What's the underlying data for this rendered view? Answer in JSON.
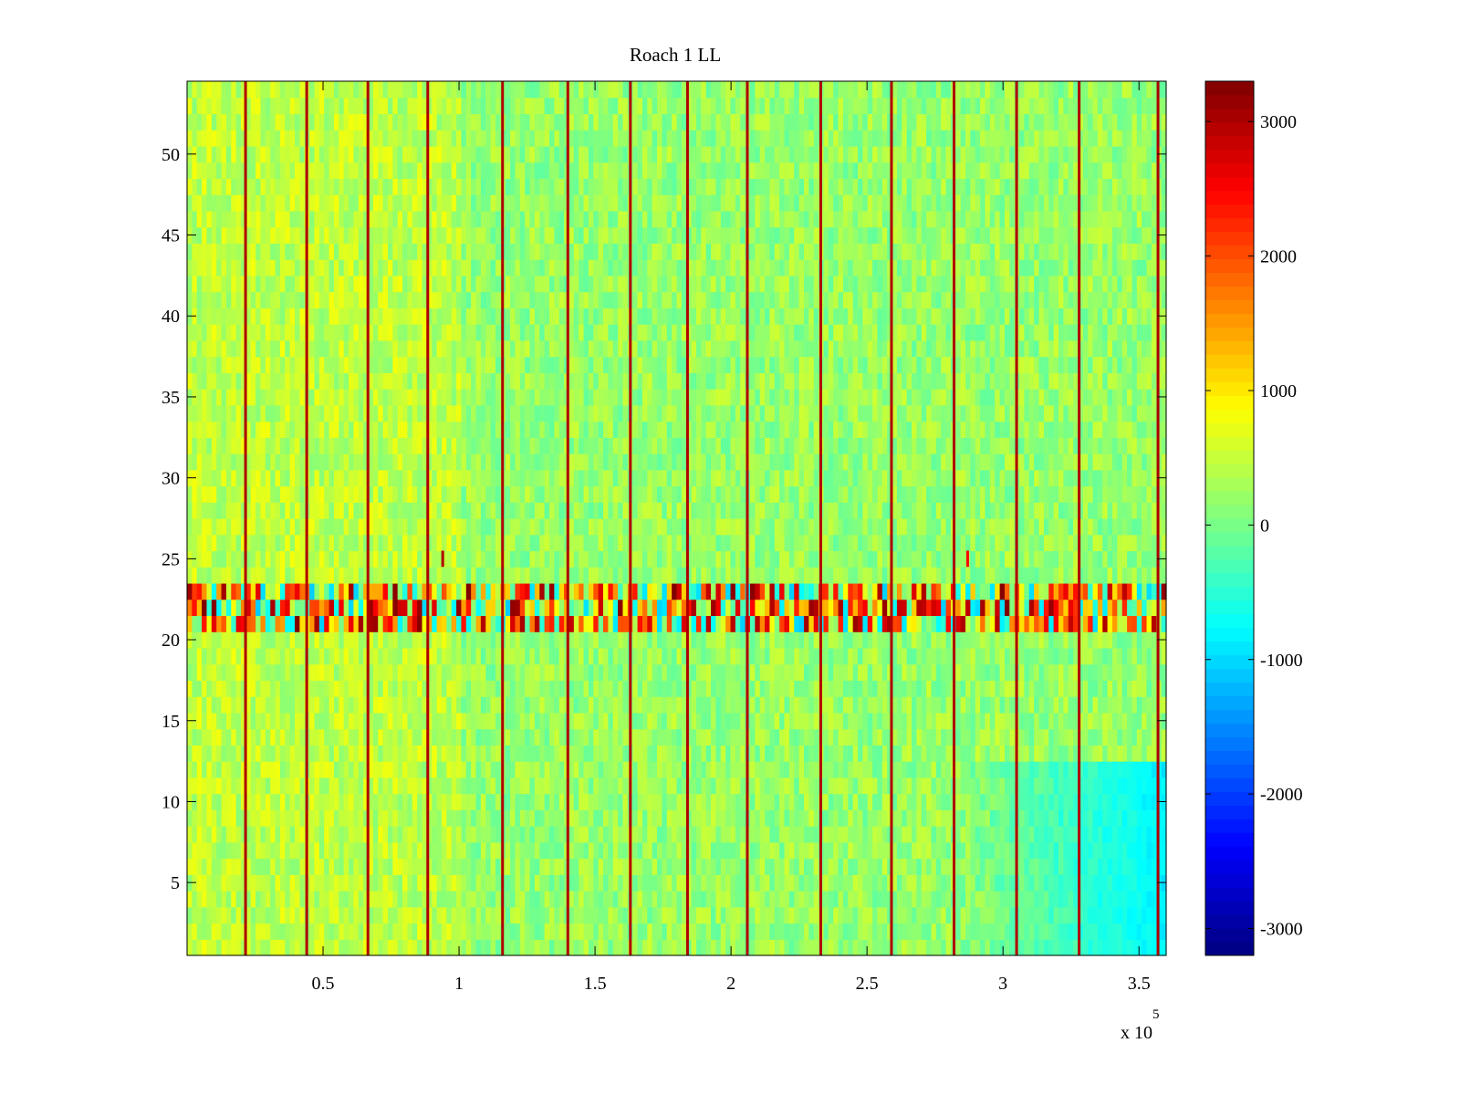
{
  "chart_data": {
    "type": "heatmap",
    "title": "Roach 1 LL",
    "xlabel": "",
    "ylabel": "",
    "x_exponent_label": "x 10",
    "x_exponent_power": "5",
    "xlim": [
      0.5,
      360000
    ],
    "ylim": [
      0.5,
      54.5
    ],
    "x_ticks": [
      50000,
      100000,
      150000,
      200000,
      250000,
      300000,
      350000
    ],
    "x_tick_labels": [
      "0.5",
      "1",
      "1.5",
      "2",
      "2.5",
      "3",
      "3.5"
    ],
    "y_ticks": [
      5,
      10,
      15,
      20,
      25,
      30,
      35,
      40,
      45,
      50
    ],
    "y_tick_labels": [
      "5",
      "10",
      "15",
      "20",
      "25",
      "30",
      "35",
      "40",
      "45",
      "50"
    ],
    "rows": 54,
    "colormap": "jet",
    "clim": [
      -3200,
      3300
    ],
    "colorbar": {
      "ticks": [
        -3000,
        -2000,
        -1000,
        0,
        1000,
        2000,
        3000
      ],
      "tick_labels": [
        "-3000",
        "-2000",
        "-1000",
        "0",
        "1000",
        "2000",
        "3000"
      ],
      "placement": "right"
    },
    "baseline_value": 200,
    "vertical_stripe_x": [
      21500,
      44000,
      66500,
      88500,
      116000,
      140000,
      163000,
      184000,
      206000,
      233000,
      259000,
      282000,
      305000,
      328000,
      357000
    ],
    "vertical_stripe_value": 3000,
    "anomaly_band_rows": [
      21,
      23
    ],
    "anomaly_band_value_range": [
      -1100,
      3300
    ],
    "isolated_marks": [
      {
        "x": 94000,
        "y": 25,
        "value": 3000
      },
      {
        "x": 287000,
        "y": 25,
        "value": 2500
      }
    ],
    "low_region": {
      "x_range": [
        280000,
        360000
      ],
      "y_range": [
        0.5,
        12
      ],
      "value": -1000
    }
  }
}
